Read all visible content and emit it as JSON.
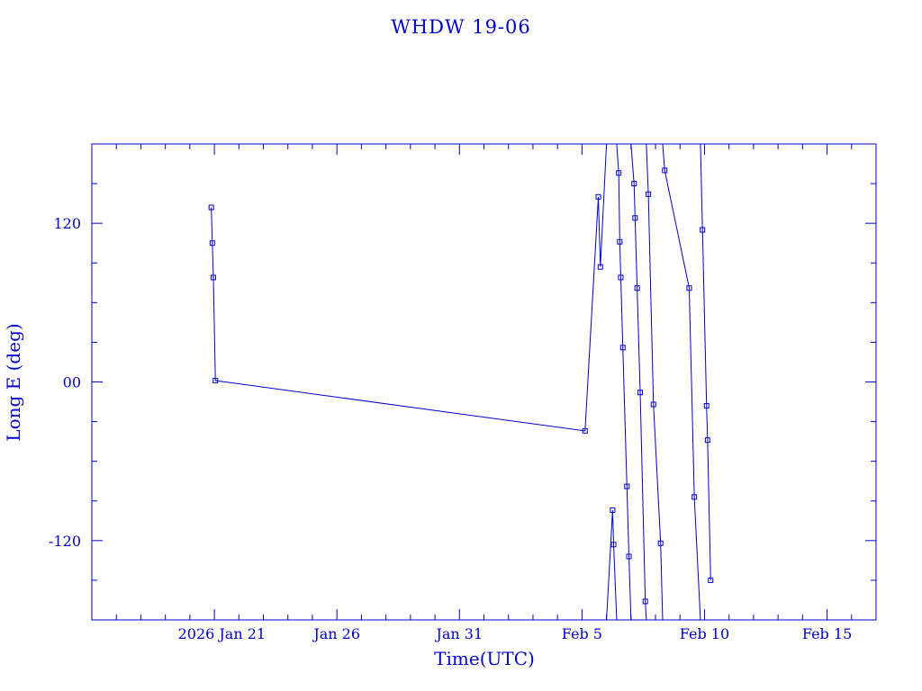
{
  "chart_data": {
    "type": "line",
    "title": "WHDW 19-06",
    "xlabel": "Time(UTC)",
    "ylabel": "Long E (deg)",
    "xlim": [
      "2026-01-16",
      "2026-02-17"
    ],
    "ylim": [
      -180,
      180
    ],
    "grid": false,
    "colors": {
      "line": "#0000cc",
      "text": "#0000cc",
      "background": "#ffffff"
    },
    "x_tick_labels": [
      {
        "date": "2026-01-21",
        "label": "2026 Jan 21"
      },
      {
        "date": "2026-01-26",
        "label": "Jan 26"
      },
      {
        "date": "2026-01-31",
        "label": "Jan 31"
      },
      {
        "date": "2026-02-05",
        "label": "Feb 5"
      },
      {
        "date": "2026-02-10",
        "label": "Feb 10"
      },
      {
        "date": "2026-02-15",
        "label": "Feb 15"
      }
    ],
    "y_tick_labels": [
      {
        "value": 120,
        "label": "120"
      },
      {
        "value": 0,
        "label": "00"
      },
      {
        "value": -120,
        "label": "-120"
      }
    ],
    "series": [
      {
        "marker": "square",
        "points": [
          [
            "2026-01-20T21:00",
            132
          ],
          [
            "2026-01-20T22:00",
            105
          ],
          [
            "2026-01-20T23:00",
            79
          ],
          [
            "2026-01-21T01:00",
            1
          ],
          [
            "2026-02-05T03:00",
            -37
          ],
          [
            "2026-02-05T16:00",
            140
          ],
          [
            "2026-02-05T18:00",
            87
          ],
          [
            "2026-02-06T00:00",
            180
          ],
          [
            "2026-02-06T00:00",
            -180
          ],
          [
            "2026-02-06T06:00",
            -97
          ],
          [
            "2026-02-06T07:00",
            -123
          ],
          [
            "2026-02-06T10:00",
            -180
          ],
          [
            "2026-02-06T10:00",
            180
          ],
          [
            "2026-02-06T12:00",
            158
          ],
          [
            "2026-02-06T13:00",
            106
          ],
          [
            "2026-02-06T14:00",
            79
          ],
          [
            "2026-02-06T16:00",
            26
          ],
          [
            "2026-02-06T20:00",
            -79
          ],
          [
            "2026-02-06T22:00",
            -132
          ],
          [
            "2026-02-07T00:00",
            -180
          ],
          [
            "2026-02-07T00:00",
            180
          ],
          [
            "2026-02-07T03:00",
            150
          ],
          [
            "2026-02-07T04:00",
            124
          ],
          [
            "2026-02-07T06:00",
            71
          ],
          [
            "2026-02-07T09:00",
            -8
          ],
          [
            "2026-02-07T14:00",
            -166
          ],
          [
            "2026-02-07T15:00",
            -180
          ],
          [
            "2026-02-07T15:00",
            180
          ],
          [
            "2026-02-07T17:00",
            142
          ],
          [
            "2026-02-07T22:00",
            -17
          ],
          [
            "2026-02-08T05:00",
            -122
          ],
          [
            "2026-02-08T07:00",
            -180
          ],
          [
            "2026-02-08T07:00",
            180
          ],
          [
            "2026-02-08T09:00",
            160
          ],
          [
            "2026-02-09T09:00",
            71
          ],
          [
            "2026-02-09T14:00",
            -87
          ],
          [
            "2026-02-09T20:00",
            -180
          ],
          [
            "2026-02-09T20:00",
            180
          ],
          [
            "2026-02-09T22:00",
            115
          ],
          [
            "2026-02-10T02:00",
            -18
          ],
          [
            "2026-02-10T03:00",
            -44
          ],
          [
            "2026-02-10T06:00",
            -150
          ]
        ]
      }
    ]
  }
}
